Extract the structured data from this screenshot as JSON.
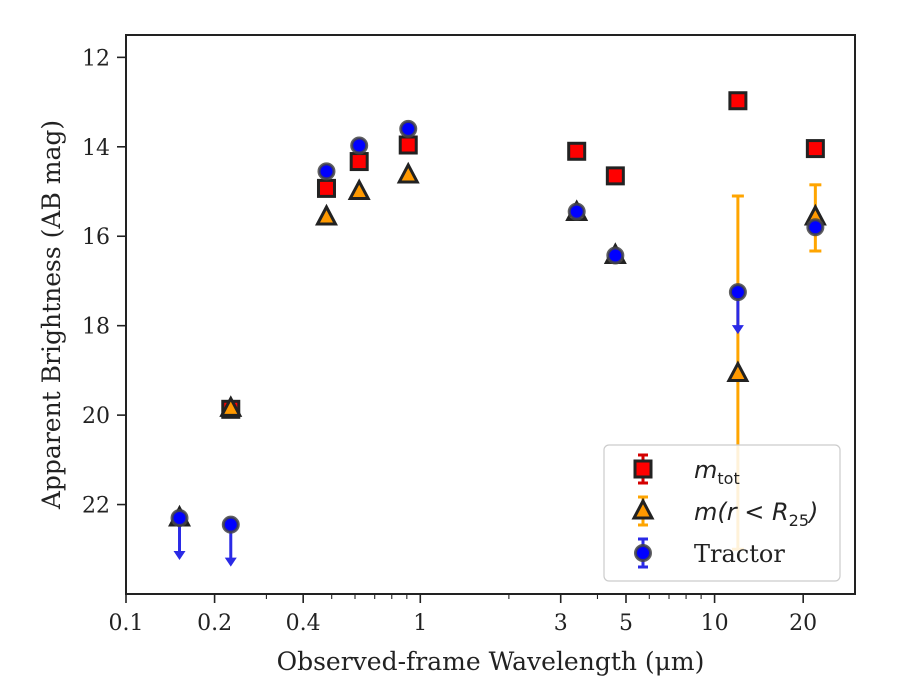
{
  "chart_data": {
    "type": "scatter",
    "xlabel": "Observed-frame Wavelength (μm)",
    "ylabel": "Apparent Brightness (AB mag)",
    "xscale": "log",
    "xlim": [
      0.1,
      30
    ],
    "ylim": [
      24,
      11.5
    ],
    "y_inverted": true,
    "xticks": [
      {
        "value": 0.1,
        "label": "0.1"
      },
      {
        "value": 0.2,
        "label": "0.2"
      },
      {
        "value": 0.4,
        "label": "0.4"
      },
      {
        "value": 1,
        "label": "1"
      },
      {
        "value": 3,
        "label": "3"
      },
      {
        "value": 5,
        "label": "5"
      },
      {
        "value": 10,
        "label": "10"
      },
      {
        "value": 20,
        "label": "20"
      }
    ],
    "yticks": [
      {
        "value": 12,
        "label": "12"
      },
      {
        "value": 14,
        "label": "14"
      },
      {
        "value": 16,
        "label": "16"
      },
      {
        "value": 18,
        "label": "18"
      },
      {
        "value": 20,
        "label": "20"
      },
      {
        "value": 22,
        "label": "22"
      }
    ],
    "legend_position": "lower-right",
    "series": [
      {
        "name": "m_tot",
        "label_main": "m",
        "label_sub": "tot",
        "marker": "square",
        "color": "#ff0000",
        "errcolor": "#d40000",
        "points": [
          {
            "x": 0.227,
            "y": 19.87
          },
          {
            "x": 0.48,
            "y": 14.93
          },
          {
            "x": 0.62,
            "y": 14.33
          },
          {
            "x": 0.91,
            "y": 13.96
          },
          {
            "x": 3.4,
            "y": 14.1
          },
          {
            "x": 4.6,
            "y": 14.65
          },
          {
            "x": 12.0,
            "y": 12.97
          },
          {
            "x": 22.0,
            "y": 14.04
          }
        ]
      },
      {
        "name": "m(r < R_25)",
        "label_main": "m(r < R",
        "label_sub": "25",
        "label_tail": ")",
        "marker": "triangle",
        "color": "#ff9900",
        "errcolor": "#ffa500",
        "points": [
          {
            "x": 0.152,
            "y": 22.3
          },
          {
            "x": 0.227,
            "y": 19.85
          },
          {
            "x": 0.48,
            "y": 15.57
          },
          {
            "x": 0.62,
            "y": 15.0
          },
          {
            "x": 0.91,
            "y": 14.63
          },
          {
            "x": 3.4,
            "y": 15.47
          },
          {
            "x": 4.6,
            "y": 16.43
          },
          {
            "x": 12.0,
            "y": 19.07,
            "ylo": 15.1,
            "yhi": 23.0
          },
          {
            "x": 22.0,
            "y": 15.57,
            "ylo": 14.85,
            "yhi": 16.33
          }
        ]
      },
      {
        "name": "Tractor",
        "label_main": "Tractor",
        "marker": "circle",
        "color": "#0000ff",
        "errcolor": "#2a2ae6",
        "points": [
          {
            "x": 0.152,
            "y": 22.3,
            "upper_limit": true
          },
          {
            "x": 0.227,
            "y": 22.45,
            "upper_limit": true
          },
          {
            "x": 0.48,
            "y": 14.55
          },
          {
            "x": 0.62,
            "y": 13.97
          },
          {
            "x": 0.91,
            "y": 13.6
          },
          {
            "x": 3.4,
            "y": 15.45
          },
          {
            "x": 4.6,
            "y": 16.43
          },
          {
            "x": 12.0,
            "y": 17.25,
            "upper_limit": true
          },
          {
            "x": 22.0,
            "y": 15.8
          }
        ]
      }
    ]
  }
}
